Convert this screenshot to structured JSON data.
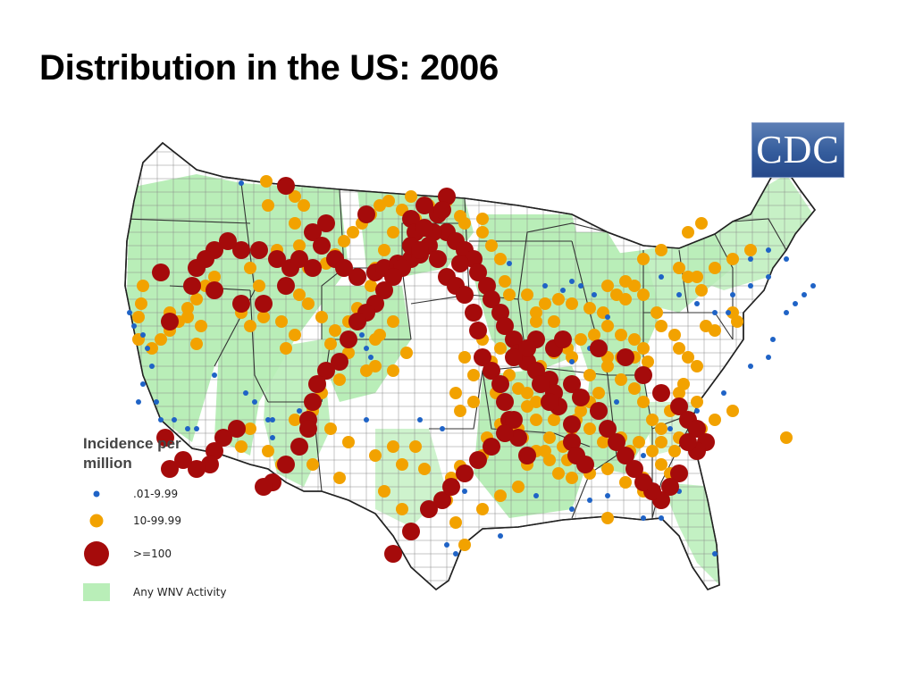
{
  "slide": {
    "title": "Distribution in the US: 2006"
  },
  "logo": {
    "text": "CDC",
    "color": "#345c9c"
  },
  "legend": {
    "title": "Incidence per million",
    "items": [
      {
        "label": ".01-9.99",
        "color": "#1f63c6",
        "icon": "small-blue-dot"
      },
      {
        "label": "10-99.99",
        "color": "#f2a200",
        "icon": "medium-orange-dot"
      },
      {
        "label": ">=100",
        "color": "#a50b0b",
        "icon": "large-red-dot"
      },
      {
        "label": "Any WNV Activity",
        "color": "#b9eeb8",
        "icon": "green-square"
      }
    ]
  },
  "map": {
    "region": "Contiguous United States, county-level",
    "colors": {
      "land": "#ffffff",
      "wnv_activity": "#b9eeb8",
      "borders": "#555555"
    }
  }
}
